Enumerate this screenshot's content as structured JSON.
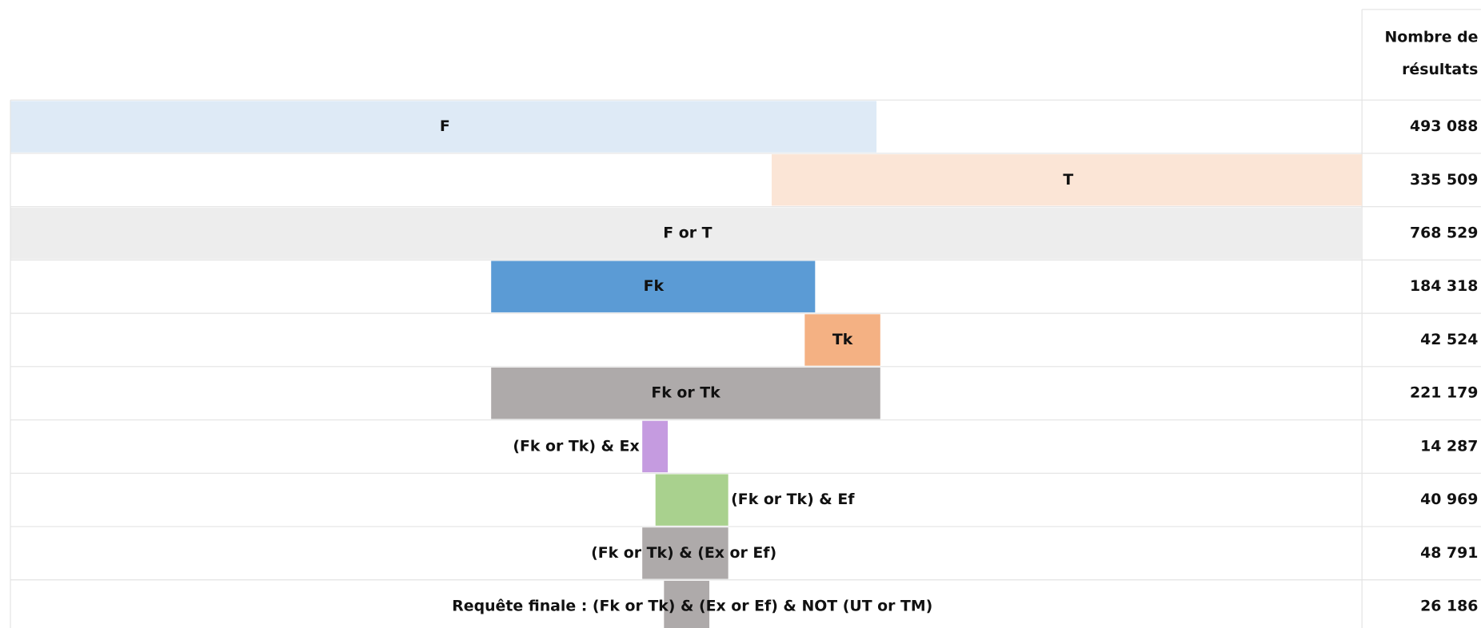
{
  "header": {
    "count_title": [
      "Nombre de",
      "résultats"
    ]
  },
  "rows": [
    {
      "label": "F",
      "count": "493 088"
    },
    {
      "label": "T",
      "count": "335 509"
    },
    {
      "label": "F or T",
      "count": "768 529"
    },
    {
      "label": "Fk",
      "count": "184 318"
    },
    {
      "label": "Tk",
      "count": "42 524"
    },
    {
      "label": "Fk or Tk",
      "count": "221 179"
    },
    {
      "label": "(Fk or Tk) & Ex",
      "count": "14 287"
    },
    {
      "label": "(Fk or Tk) & Ef",
      "count": "40 969"
    },
    {
      "label": "(Fk or Tk) & (Ex or Ef)",
      "count": "48 791"
    },
    {
      "label": "Requête finale : (Fk or Tk) & (Ex or Ef) & NOT (UT or TM)",
      "count": "26 186"
    }
  ]
}
